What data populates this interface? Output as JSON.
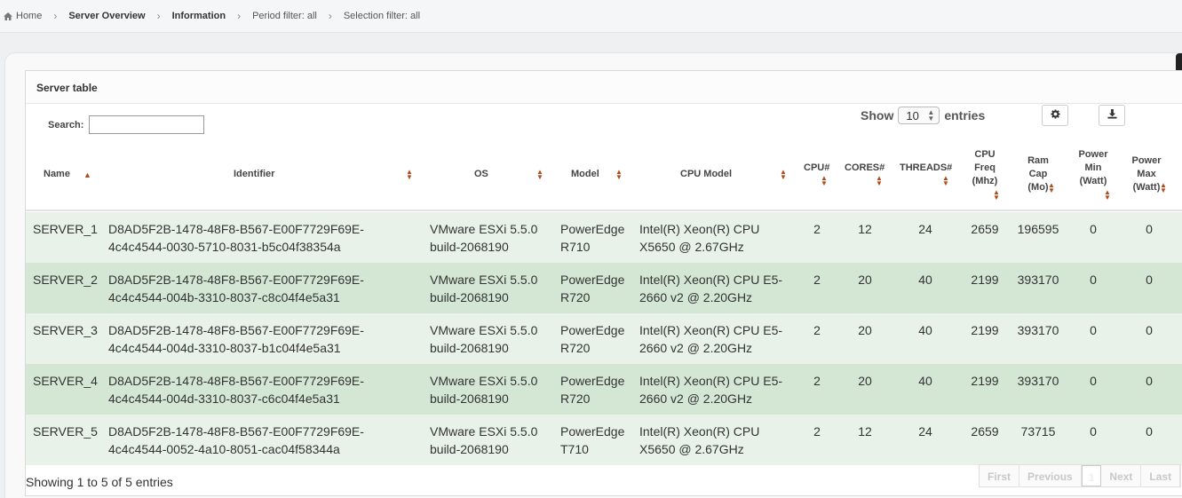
{
  "breadcrumb": {
    "items": [
      {
        "label": "Home"
      },
      {
        "label": "Server Overview"
      },
      {
        "label": "Information"
      },
      {
        "label": "Period filter: all"
      },
      {
        "label": "Selection filter: all"
      }
    ]
  },
  "box": {
    "title": "Server table"
  },
  "search": {
    "label": "Search:",
    "value": ""
  },
  "length": {
    "show": "Show",
    "value": "10",
    "entries": "entries"
  },
  "icons": {
    "settings": "gear-icon",
    "export": "download-icon",
    "home": "home-icon"
  },
  "columns": [
    {
      "line1": "Name",
      "line2": "",
      "line3": "",
      "sort": "asc"
    },
    {
      "line1": "Identifier",
      "line2": "",
      "line3": "",
      "sort": "both"
    },
    {
      "line1": "OS",
      "line2": "",
      "line3": "",
      "sort": "both"
    },
    {
      "line1": "Model",
      "line2": "",
      "line3": "",
      "sort": "both"
    },
    {
      "line1": "CPU Model",
      "line2": "",
      "line3": "",
      "sort": "both"
    },
    {
      "line1": "CPU#",
      "line2": "",
      "line3": "",
      "sort": "both"
    },
    {
      "line1": "CORES#",
      "line2": "",
      "line3": "",
      "sort": "both"
    },
    {
      "line1": "THREADS#",
      "line2": "",
      "line3": "",
      "sort": "both"
    },
    {
      "line1": "CPU",
      "line2": "Freq",
      "line3": "(Mhz)",
      "sort": "both"
    },
    {
      "line1": "Ram",
      "line2": "Cap",
      "line3": "(Mo)",
      "sort": "both"
    },
    {
      "line1": "Power",
      "line2": "Min",
      "line3": "(Watt)",
      "sort": "both"
    },
    {
      "line1": "Power",
      "line2": "Max",
      "line3": "(Watt)",
      "sort": "both"
    }
  ],
  "rows": [
    {
      "name": "SERVER_1",
      "id1": "D8AD5F2B-1478-48F8-B567-E00F7729F69E-",
      "id2": "4c4c4544-0030-5710-8031-b5c04f38354a",
      "os1": "VMware ESXi 5.5.0",
      "os2": "build-2068190",
      "model1": "PowerEdge",
      "model2": "R710",
      "cpu1": "Intel(R) Xeon(R) CPU",
      "cpu2": "X5650 @ 2.67GHz",
      "cpus": "2",
      "cores": "12",
      "threads": "24",
      "freq": "2659",
      "ram": "196595",
      "pmin": "0",
      "pmax": "0"
    },
    {
      "name": "SERVER_2",
      "id1": "D8AD5F2B-1478-48F8-B567-E00F7729F69E-",
      "id2": "4c4c4544-004b-3310-8037-c8c04f4e5a31",
      "os1": "VMware ESXi 5.5.0",
      "os2": "build-2068190",
      "model1": "PowerEdge",
      "model2": "R720",
      "cpu1": "Intel(R) Xeon(R) CPU E5-",
      "cpu2": "2660 v2 @ 2.20GHz",
      "cpus": "2",
      "cores": "20",
      "threads": "40",
      "freq": "2199",
      "ram": "393170",
      "pmin": "0",
      "pmax": "0"
    },
    {
      "name": "SERVER_3",
      "id1": "D8AD5F2B-1478-48F8-B567-E00F7729F69E-",
      "id2": "4c4c4544-004d-3310-8037-b1c04f4e5a31",
      "os1": "VMware ESXi 5.5.0",
      "os2": "build-2068190",
      "model1": "PowerEdge",
      "model2": "R720",
      "cpu1": "Intel(R) Xeon(R) CPU E5-",
      "cpu2": "2660 v2 @ 2.20GHz",
      "cpus": "2",
      "cores": "20",
      "threads": "40",
      "freq": "2199",
      "ram": "393170",
      "pmin": "0",
      "pmax": "0"
    },
    {
      "name": "SERVER_4",
      "id1": "D8AD5F2B-1478-48F8-B567-E00F7729F69E-",
      "id2": "4c4c4544-004d-3310-8037-c6c04f4e5a31",
      "os1": "VMware ESXi 5.5.0",
      "os2": "build-2068190",
      "model1": "PowerEdge",
      "model2": "R720",
      "cpu1": "Intel(R) Xeon(R) CPU E5-",
      "cpu2": "2660 v2 @ 2.20GHz",
      "cpus": "2",
      "cores": "20",
      "threads": "40",
      "freq": "2199",
      "ram": "393170",
      "pmin": "0",
      "pmax": "0"
    },
    {
      "name": "SERVER_5",
      "id1": "D8AD5F2B-1478-48F8-B567-E00F7729F69E-",
      "id2": "4c4c4544-0052-4a10-8051-cac04f58344a",
      "os1": "VMware ESXi 5.5.0",
      "os2": "build-2068190",
      "model1": "PowerEdge",
      "model2": "T710",
      "cpu1": "Intel(R) Xeon(R) CPU",
      "cpu2": "X5650 @ 2.67GHz",
      "cpus": "2",
      "cores": "12",
      "threads": "24",
      "freq": "2659",
      "ram": "73715",
      "pmin": "0",
      "pmax": "0"
    }
  ],
  "footer": {
    "info": "Showing 1 to 5 of 5 entries"
  },
  "pagination": {
    "first": "First",
    "previous": "Previous",
    "current": "1",
    "next": "Next",
    "last": "Last"
  }
}
